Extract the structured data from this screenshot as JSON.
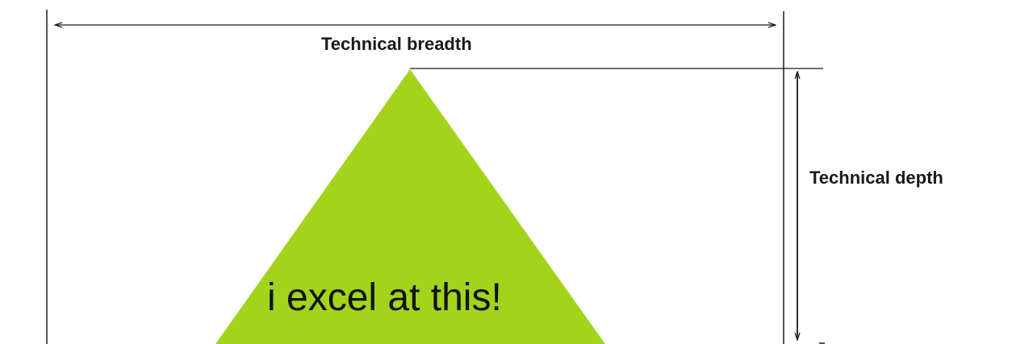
{
  "diagram": {
    "breadth_label": "Technical breadth",
    "depth_label": "Technical depth",
    "triangle_text": "i excel at this!"
  },
  "colors": {
    "triangle_fill": "#a2d41b",
    "line": "#1a1a1a"
  }
}
